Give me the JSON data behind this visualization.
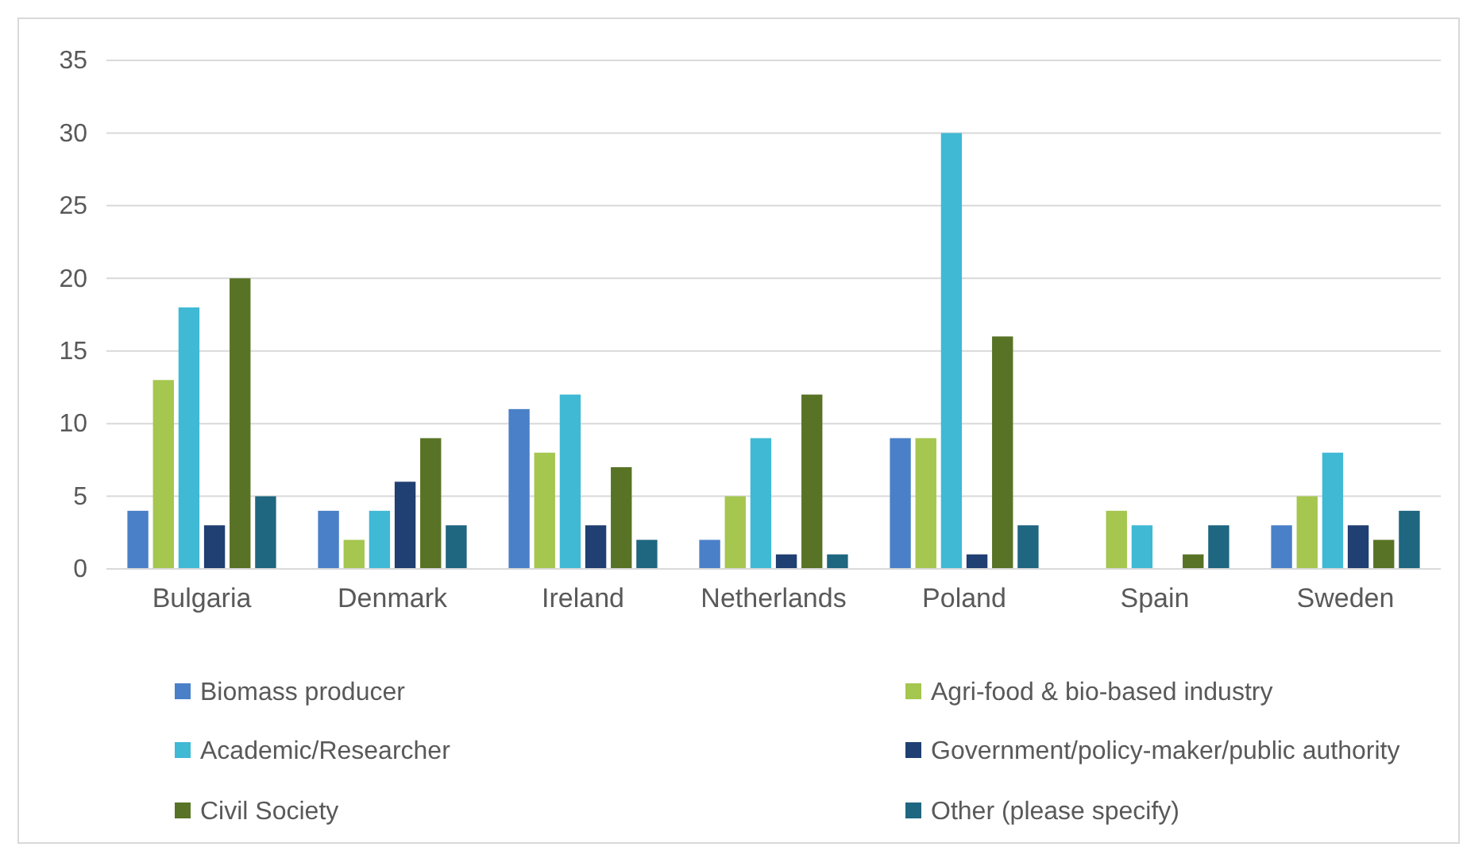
{
  "chart_data": {
    "type": "bar",
    "categories": [
      "Bulgaria",
      "Denmark",
      "Ireland",
      "Netherlands",
      "Poland",
      "Spain",
      "Sweden"
    ],
    "series": [
      {
        "name": "Biomass producer",
        "color": "#4a80c8",
        "values": [
          4,
          4,
          11,
          2,
          9,
          null,
          3
        ]
      },
      {
        "name": "Agri-food & bio-based industry",
        "color": "#a5c64f",
        "values": [
          13,
          2,
          8,
          5,
          9,
          4,
          5
        ]
      },
      {
        "name": "Academic/Researcher",
        "color": "#40b9d5",
        "values": [
          18,
          4,
          12,
          9,
          30,
          3,
          8
        ]
      },
      {
        "name": "Government/policy-maker/public authority",
        "color": "#203f72",
        "values": [
          3,
          6,
          3,
          1,
          1,
          null,
          3
        ]
      },
      {
        "name": "Civil Society",
        "color": "#587326",
        "values": [
          20,
          9,
          7,
          12,
          16,
          1,
          2
        ]
      },
      {
        "name": "Other (please specify)",
        "color": "#1f6680",
        "values": [
          5,
          3,
          2,
          1,
          3,
          3,
          4
        ]
      }
    ],
    "ylim": [
      0,
      35
    ],
    "yticks": [
      0,
      5,
      10,
      15,
      20,
      25,
      30,
      35
    ],
    "grid": "y",
    "legend": "bottom"
  }
}
